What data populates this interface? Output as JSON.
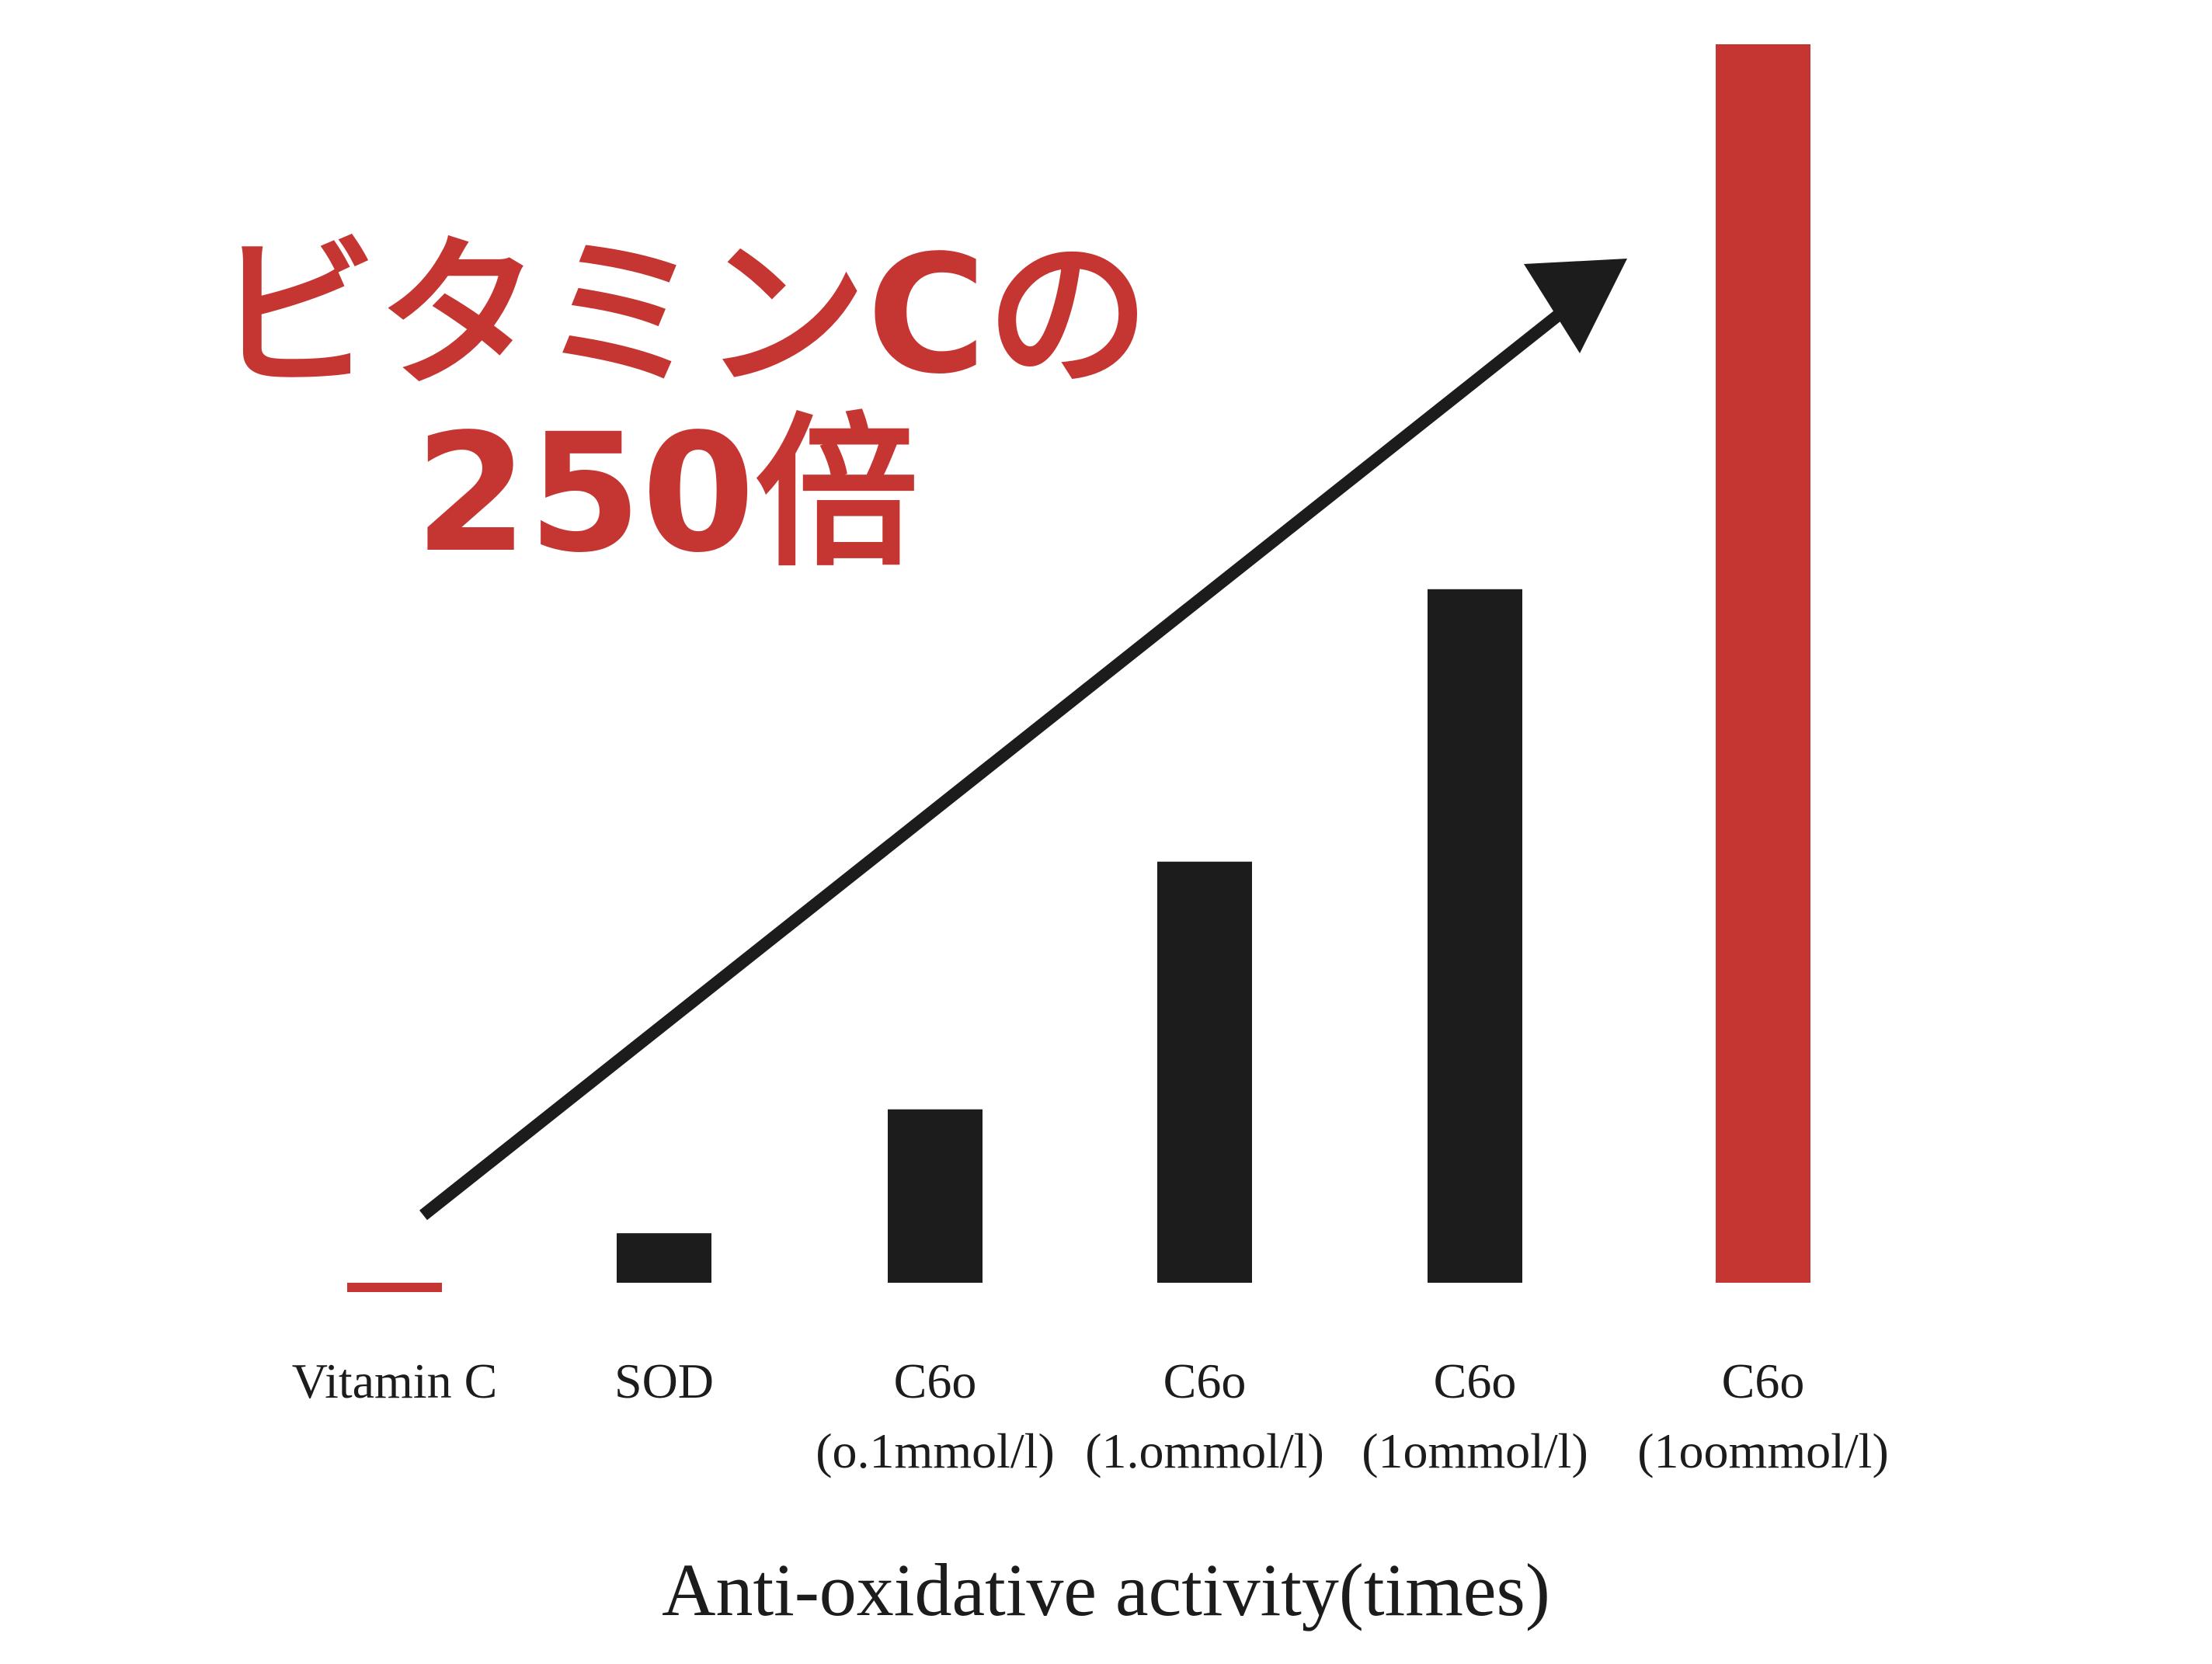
{
  "headline": {
    "line1": "ビタミンCの",
    "line2": "250倍",
    "color": "#c53632"
  },
  "chart_data": {
    "type": "bar",
    "categories": [
      [
        "Vitamin C"
      ],
      [
        "SOD"
      ],
      [
        "C6o",
        "(o.1mmol/l)"
      ],
      [
        "C6o",
        "(1.ommol/l)"
      ],
      [
        "C6o",
        "(1ommol/l)"
      ],
      [
        "C6o",
        "(1oommol/l)"
      ]
    ],
    "values": [
      1,
      10,
      35,
      85,
      140,
      250
    ],
    "bar_colors": [
      "#c53632",
      "#1c1c1c",
      "#1c1c1c",
      "#1c1c1c",
      "#1c1c1c",
      "#c53632"
    ],
    "xlabel": "Anti-oxidative activity(times)",
    "ylabel": "",
    "ylim": [
      0,
      250
    ],
    "grid": false,
    "trend_arrow": {
      "color": "#1c1c1c"
    }
  }
}
